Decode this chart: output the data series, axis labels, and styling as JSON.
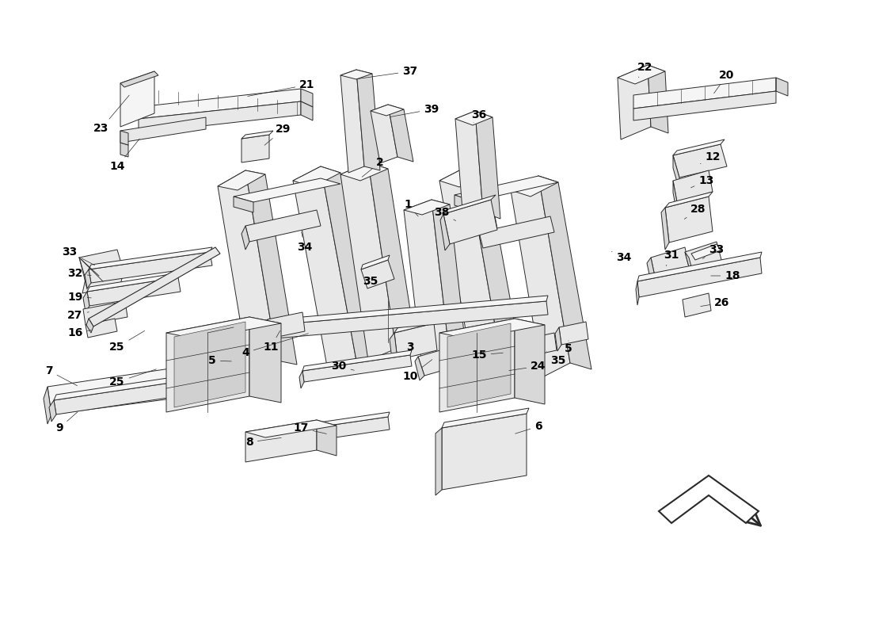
{
  "bg_color": "#ffffff",
  "line_color": "#2a2a2a",
  "label_color": "#000000",
  "lw": 0.7,
  "fig_w": 11.0,
  "fig_h": 8.0,
  "dpi": 100
}
